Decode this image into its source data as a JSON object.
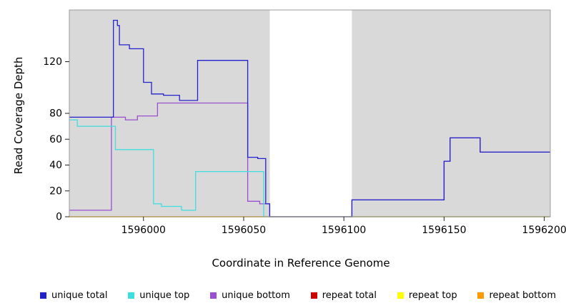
{
  "chart_data": {
    "type": "line",
    "title": "",
    "xlabel": "Coordinate in Reference Genome",
    "ylabel": "Read Coverage Depth",
    "xlim": [
      1595963,
      1596203
    ],
    "ylim": [
      0,
      160
    ],
    "x_ticks": [
      1596000,
      1596050,
      1596100,
      1596150,
      1596200
    ],
    "y_ticks": [
      0,
      20,
      40,
      60,
      80,
      120
    ],
    "panel_bg": "#d9d9d9",
    "gap_region": {
      "x0": 1596063,
      "x1": 1596104
    },
    "series": [
      {
        "name": "repeat total",
        "color": "#cc0000",
        "points": [
          [
            1595963,
            0
          ],
          [
            1596203,
            0
          ]
        ]
      },
      {
        "name": "repeat top",
        "color": "#ffff00",
        "points": [
          [
            1595963,
            0
          ],
          [
            1596203,
            0
          ]
        ]
      },
      {
        "name": "repeat bottom",
        "color": "#ff9900",
        "points": [
          [
            1595963,
            0
          ],
          [
            1596203,
            0
          ]
        ]
      },
      {
        "name": "unique bottom",
        "color": "#9a4fd0",
        "points": [
          [
            1595963,
            5
          ],
          [
            1595984,
            5
          ],
          [
            1595984,
            77
          ],
          [
            1595991,
            77
          ],
          [
            1595991,
            75
          ],
          [
            1595997,
            75
          ],
          [
            1595997,
            78
          ],
          [
            1596007,
            78
          ],
          [
            1596007,
            88
          ],
          [
            1596052,
            88
          ],
          [
            1596052,
            12
          ],
          [
            1596058,
            12
          ],
          [
            1596058,
            10
          ],
          [
            1596063,
            10
          ],
          [
            1596063,
            0
          ],
          [
            1596104,
            0
          ],
          [
            1596104,
            13
          ],
          [
            1596150,
            13
          ],
          [
            1596150,
            43
          ],
          [
            1596153,
            43
          ],
          [
            1596153,
            61
          ],
          [
            1596168,
            61
          ],
          [
            1596168,
            50
          ],
          [
            1596203,
            50
          ]
        ]
      },
      {
        "name": "unique top",
        "color": "#3fdede",
        "points": [
          [
            1595963,
            75
          ],
          [
            1595967,
            75
          ],
          [
            1595967,
            70
          ],
          [
            1595986,
            70
          ],
          [
            1595986,
            52
          ],
          [
            1596005,
            52
          ],
          [
            1596005,
            10
          ],
          [
            1596009,
            10
          ],
          [
            1596009,
            8
          ],
          [
            1596019,
            8
          ],
          [
            1596019,
            5
          ],
          [
            1596026,
            5
          ],
          [
            1596026,
            35
          ],
          [
            1596060,
            35
          ],
          [
            1596060,
            0
          ],
          [
            1596203,
            0
          ]
        ]
      },
      {
        "name": "unique total",
        "color": "#2222cc",
        "points": [
          [
            1595963,
            77
          ],
          [
            1595985,
            77
          ],
          [
            1595985,
            152
          ],
          [
            1595987,
            152
          ],
          [
            1595987,
            148
          ],
          [
            1595988,
            148
          ],
          [
            1595988,
            133
          ],
          [
            1595993,
            133
          ],
          [
            1595993,
            130
          ],
          [
            1596000,
            130
          ],
          [
            1596000,
            104
          ],
          [
            1596004,
            104
          ],
          [
            1596004,
            95
          ],
          [
            1596010,
            95
          ],
          [
            1596010,
            94
          ],
          [
            1596018,
            94
          ],
          [
            1596018,
            90
          ],
          [
            1596027,
            90
          ],
          [
            1596027,
            121
          ],
          [
            1596052,
            121
          ],
          [
            1596052,
            46
          ],
          [
            1596057,
            46
          ],
          [
            1596057,
            45
          ],
          [
            1596061,
            45
          ],
          [
            1596061,
            10
          ],
          [
            1596063,
            10
          ],
          [
            1596063,
            0
          ],
          [
            1596104,
            0
          ],
          [
            1596104,
            13
          ],
          [
            1596150,
            13
          ],
          [
            1596150,
            43
          ],
          [
            1596153,
            43
          ],
          [
            1596153,
            61
          ],
          [
            1596168,
            61
          ],
          [
            1596168,
            50
          ],
          [
            1596203,
            50
          ]
        ]
      }
    ],
    "legend": [
      {
        "label": "unique total",
        "color": "#2222cc"
      },
      {
        "label": "unique top",
        "color": "#3fdede"
      },
      {
        "label": "unique bottom",
        "color": "#9a4fd0"
      },
      {
        "label": "repeat total",
        "color": "#cc0000"
      },
      {
        "label": "repeat top",
        "color": "#ffff00"
      },
      {
        "label": "repeat bottom",
        "color": "#ff9900"
      }
    ]
  }
}
